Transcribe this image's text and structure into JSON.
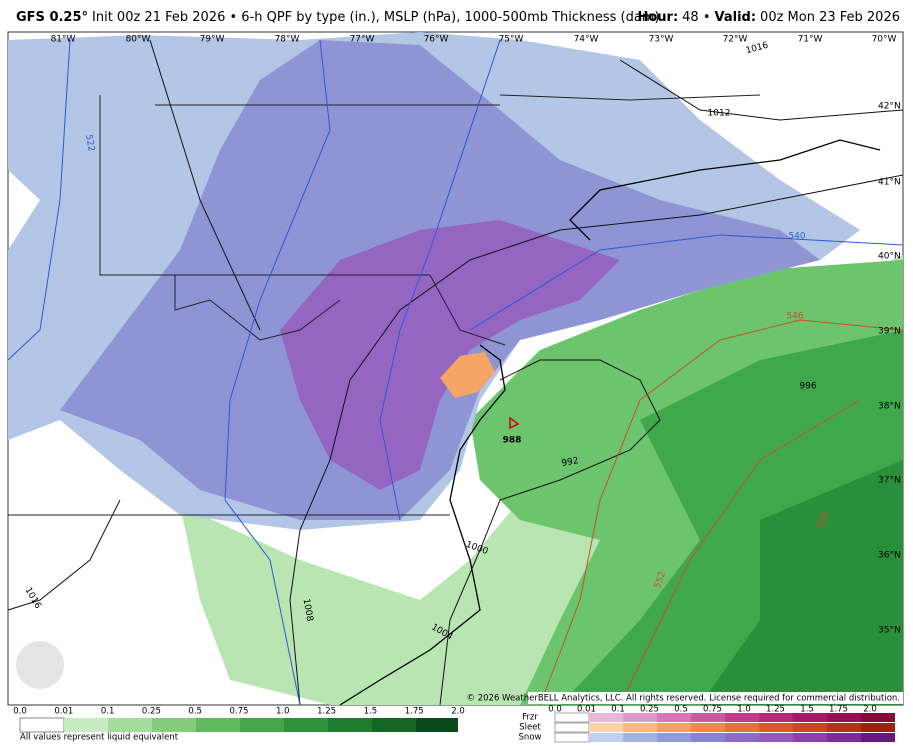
{
  "header": {
    "model": "GFS 0.25°",
    "description": "Init 00z 21 Feb 2026 • 6-h QPF by type (in.), MSLP (hPa), 1000-500mb Thickness (dam)",
    "hour_label": "Hour:",
    "hour": "48 •",
    "valid_label": "Valid:",
    "valid": "00z Mon 23 Feb 2026"
  },
  "map": {
    "longitudes": [
      "81°W",
      "80°W",
      "79°W",
      "78°W",
      "77°W",
      "76°W",
      "75°W",
      "74°W",
      "73°W",
      "72°W",
      "71°W",
      "70°W"
    ],
    "latitudes": [
      "42°N",
      "41°N",
      "40°N",
      "39°N",
      "38°N",
      "37°N",
      "36°N",
      "35°N"
    ],
    "isobar_labels": [
      "1016",
      "1012",
      "996",
      "992",
      "1000",
      "1004",
      "1008",
      "1016"
    ],
    "thickness_labels": [
      "522",
      "540",
      "546",
      "552",
      "558"
    ],
    "low_pressure": "988",
    "copyright": "© 2026 WeatherBELL Analytics, LLC. All rights reserved. License required for commercial distribution."
  },
  "legend": {
    "rain_ticks": [
      "0.0",
      "0.01",
      "0.1",
      "0.25",
      "0.5",
      "0.75",
      "1.0",
      "1.25",
      "1.5",
      "1.75",
      "2.0"
    ],
    "note": "All values represent liquid equivalent",
    "types": [
      "Frzr",
      "Sleet",
      "Snow"
    ],
    "mix_ticks": [
      "0.0",
      "0.01",
      "0.1",
      "0.25",
      "0.5",
      "0.75",
      "1.0",
      "1.25",
      "1.5",
      "1.75",
      "2.0"
    ]
  }
}
